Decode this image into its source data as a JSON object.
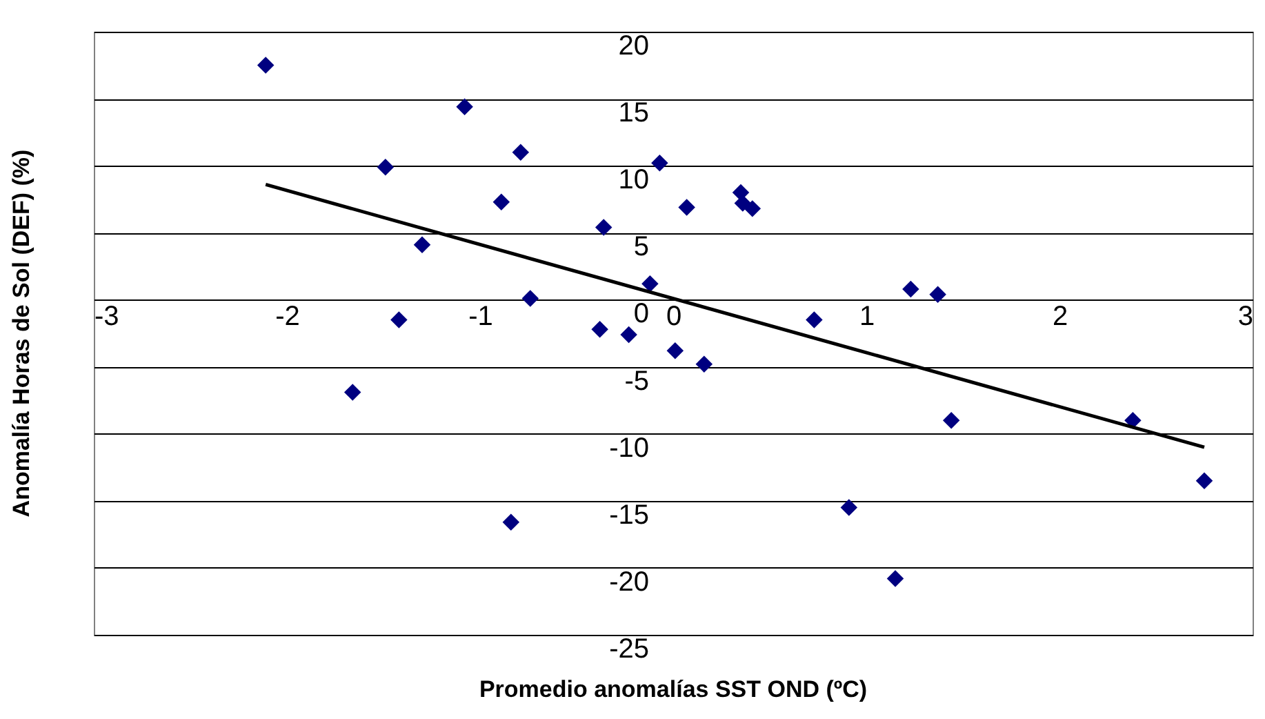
{
  "chart_data": {
    "type": "scatter",
    "xlabel": "Promedio anomalías SST OND (ºC)",
    "ylabel": "Anomalía Horas de Sol (DEF) (%)",
    "xlim": [
      -3,
      3
    ],
    "xticks": [
      -3,
      -2,
      -1,
      0,
      1,
      2,
      3
    ],
    "ylim": [
      -25,
      20
    ],
    "yticks": [
      -25,
      -20,
      -15,
      -10,
      -5,
      0,
      5,
      10,
      15,
      20
    ],
    "grid": "y",
    "series": [
      {
        "type": "scatter",
        "marker": "diamond",
        "color": "#000080",
        "x": [
          -2.11,
          -1.49,
          -1.08,
          -1.3,
          -1.42,
          -1.66,
          -0.84,
          -0.79,
          -0.89,
          -0.74,
          -0.36,
          -0.38,
          -0.23,
          -0.12,
          -0.07,
          0.01,
          0.07,
          0.16,
          0.35,
          0.36,
          0.41,
          0.73,
          0.91,
          1.15,
          1.23,
          1.37,
          1.44,
          2.38,
          2.75
        ],
        "values": [
          17.5,
          9.9,
          14.4,
          4.1,
          -1.5,
          -6.9,
          -16.6,
          11.0,
          7.3,
          0.1,
          5.4,
          -2.2,
          -2.6,
          1.2,
          10.2,
          -3.8,
          6.9,
          -4.8,
          8.0,
          7.2,
          6.8,
          -1.5,
          -15.5,
          -20.8,
          0.8,
          0.4,
          -9.0,
          -9.0,
          -13.5
        ]
      },
      {
        "type": "line",
        "color": "#000000",
        "x": [
          -2.11,
          2.75
        ],
        "values": [
          8.6,
          -11.0
        ]
      }
    ]
  }
}
